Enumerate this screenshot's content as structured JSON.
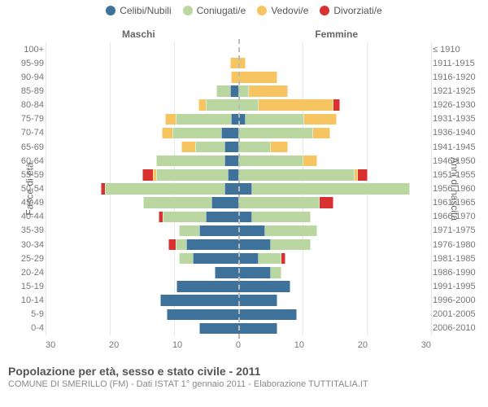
{
  "legend": [
    {
      "label": "Celibi/Nubili",
      "color": "#3f729b"
    },
    {
      "label": "Coniugati/e",
      "color": "#bad6a1"
    },
    {
      "label": "Vedovi/e",
      "color": "#f6c562"
    },
    {
      "label": "Divorziati/e",
      "color": "#d93030"
    }
  ],
  "sides": {
    "left": "Maschi",
    "right": "Femmine"
  },
  "axis_titles": {
    "left": "Fasce di età",
    "right": "Anni di nascita"
  },
  "x": {
    "min": -30,
    "max": 30,
    "ticks": [
      30,
      20,
      10,
      0,
      10,
      20,
      30
    ]
  },
  "colors": {
    "background": "#ffffff",
    "grid": "#e6e6e6",
    "centerline": "#bbbbbb",
    "text": "#555555",
    "tick_text": "#777777"
  },
  "fonts": {
    "family": "Arial",
    "legend_pt": 12,
    "tick_pt": 11,
    "label_pt": 12,
    "title_pt": 14,
    "subtitle_pt": 11
  },
  "bar_height_ratio": 0.78,
  "age_bands": [
    {
      "age": "100+",
      "birth": "≤ 1910",
      "m": [
        0,
        0,
        0,
        0
      ],
      "f": [
        0,
        0,
        0,
        0
      ]
    },
    {
      "age": "95-99",
      "birth": "1911-1915",
      "m": [
        0,
        0,
        1.2,
        0
      ],
      "f": [
        0,
        0,
        1.0,
        0
      ]
    },
    {
      "age": "90-94",
      "birth": "1916-1920",
      "m": [
        0,
        0,
        1.0,
        0
      ],
      "f": [
        0,
        0,
        6.0,
        0
      ]
    },
    {
      "age": "85-89",
      "birth": "1921-1925",
      "m": [
        1.2,
        2.0,
        0,
        0
      ],
      "f": [
        0,
        1.5,
        6.0,
        0
      ]
    },
    {
      "age": "80-84",
      "birth": "1926-1930",
      "m": [
        0,
        5.0,
        1.0,
        0
      ],
      "f": [
        0,
        3.0,
        11.5,
        1.0
      ]
    },
    {
      "age": "75-79",
      "birth": "1931-1935",
      "m": [
        1.0,
        8.5,
        1.5,
        0
      ],
      "f": [
        1.0,
        9.0,
        5.0,
        0
      ]
    },
    {
      "age": "70-74",
      "birth": "1936-1940",
      "m": [
        2.5,
        7.5,
        1.5,
        0
      ],
      "f": [
        0,
        11.5,
        2.5,
        0
      ]
    },
    {
      "age": "65-69",
      "birth": "1941-1945",
      "m": [
        2.0,
        4.5,
        2.0,
        0
      ],
      "f": [
        0,
        5.0,
        2.5,
        0
      ]
    },
    {
      "age": "60-64",
      "birth": "1946-1950",
      "m": [
        2.0,
        10.5,
        0,
        0
      ],
      "f": [
        0,
        10.0,
        2.0,
        0
      ]
    },
    {
      "age": "55-59",
      "birth": "1951-1955",
      "m": [
        1.5,
        11.0,
        0.4,
        1.5
      ],
      "f": [
        0,
        18.0,
        0.3,
        1.5
      ]
    },
    {
      "age": "50-54",
      "birth": "1956-1960",
      "m": [
        2.0,
        18.5,
        0,
        0.5
      ],
      "f": [
        2.0,
        24.5,
        0,
        0
      ]
    },
    {
      "age": "45-49",
      "birth": "1961-1965",
      "m": [
        4.0,
        10.5,
        0,
        0
      ],
      "f": [
        0,
        12.5,
        0,
        2.0
      ]
    },
    {
      "age": "40-44",
      "birth": "1966-1970",
      "m": [
        5.0,
        6.5,
        0,
        0.5
      ],
      "f": [
        2.0,
        9.0,
        0,
        0
      ]
    },
    {
      "age": "35-39",
      "birth": "1971-1975",
      "m": [
        6.0,
        3.0,
        0,
        0
      ],
      "f": [
        4.0,
        8.0,
        0,
        0
      ]
    },
    {
      "age": "30-34",
      "birth": "1976-1980",
      "m": [
        8.0,
        1.5,
        0,
        1.0
      ],
      "f": [
        5.0,
        6.0,
        0,
        0
      ]
    },
    {
      "age": "25-29",
      "birth": "1981-1985",
      "m": [
        7.0,
        2.0,
        0,
        0
      ],
      "f": [
        3.0,
        3.5,
        0,
        0.5
      ]
    },
    {
      "age": "20-24",
      "birth": "1986-1990",
      "m": [
        3.5,
        0,
        0,
        0
      ],
      "f": [
        5.0,
        1.5,
        0,
        0
      ]
    },
    {
      "age": "15-19",
      "birth": "1991-1995",
      "m": [
        9.5,
        0,
        0,
        0
      ],
      "f": [
        8.0,
        0,
        0,
        0
      ]
    },
    {
      "age": "10-14",
      "birth": "1996-2000",
      "m": [
        12.0,
        0,
        0,
        0
      ],
      "f": [
        6.0,
        0,
        0,
        0
      ]
    },
    {
      "age": "5-9",
      "birth": "2001-2005",
      "m": [
        11.0,
        0,
        0,
        0
      ],
      "f": [
        9.0,
        0,
        0,
        0
      ]
    },
    {
      "age": "0-4",
      "birth": "2006-2010",
      "m": [
        6.0,
        0,
        0,
        0
      ],
      "f": [
        6.0,
        0,
        0,
        0
      ]
    }
  ],
  "footer": {
    "title": "Popolazione per età, sesso e stato civile - 2011",
    "subtitle": "COMUNE DI SMERILLO (FM) - Dati ISTAT 1° gennaio 2011 - Elaborazione TUTTITALIA.IT"
  }
}
